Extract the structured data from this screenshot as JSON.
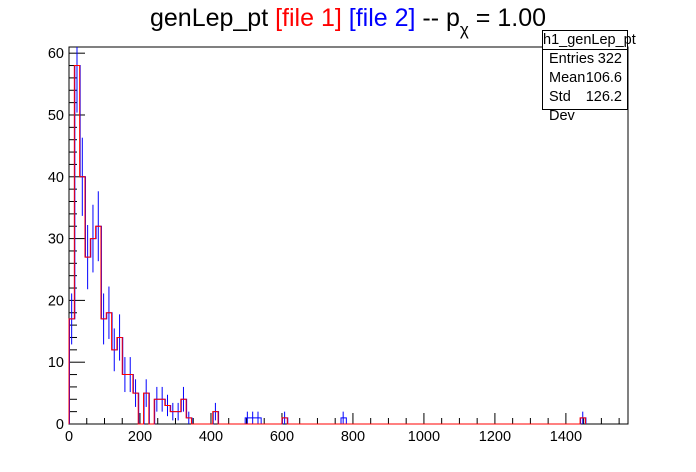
{
  "title": {
    "prefix": "genLep_pt ",
    "file1": "[file 1]",
    "file2": "[file 2]",
    "dash": " -- p",
    "sub": "χ",
    "tail": " = 1.00"
  },
  "stats": {
    "name": "h1_genLep_pt",
    "rows": [
      {
        "label": "Entries",
        "value": "322"
      },
      {
        "label": "Mean",
        "value": "106.6"
      },
      {
        "label": "Std Dev",
        "value": "126.2"
      }
    ]
  },
  "colors": {
    "file1": "#ff0000",
    "file2": "#0000ff",
    "axis": "#000000"
  },
  "chart_data": {
    "type": "histogram",
    "title": "genLep_pt [file 1] [file 2] -- pχ = 1.00",
    "xlim": [
      0,
      1575
    ],
    "ylim": [
      0,
      61
    ],
    "bin_width": 15,
    "x_ticks": [
      0,
      200,
      400,
      600,
      800,
      1000,
      1200,
      1400
    ],
    "y_ticks": [
      0,
      10,
      20,
      30,
      40,
      50,
      60
    ],
    "grid": false,
    "series": [
      {
        "name": "file 1",
        "color": "#ff0000",
        "values": [
          17,
          58,
          40,
          27,
          30,
          32,
          17,
          18,
          12,
          14,
          8,
          8,
          5,
          0,
          5,
          0,
          4,
          4,
          3,
          2,
          2,
          4,
          1,
          0,
          0,
          0,
          0,
          2,
          0,
          0,
          0,
          0,
          0,
          0,
          0,
          0,
          0,
          0,
          0,
          0,
          1,
          0,
          0,
          0,
          0,
          0,
          0,
          0,
          0,
          0,
          0,
          0,
          0,
          0,
          0,
          0,
          0,
          0,
          0,
          0,
          0,
          0,
          0,
          0,
          0,
          0,
          0,
          0,
          0,
          0,
          0,
          0,
          0,
          0,
          0,
          0,
          0,
          0,
          0,
          0,
          0,
          0,
          0,
          0,
          0,
          0,
          0,
          0,
          0,
          0,
          0,
          0,
          0,
          0,
          0,
          0,
          1
        ]
      },
      {
        "name": "file 2",
        "color": "#0000ff",
        "values": [
          17,
          58,
          40,
          27,
          30,
          32,
          17,
          18,
          12,
          14,
          8,
          8,
          5,
          0,
          5,
          0,
          4,
          4,
          3,
          2,
          2,
          4,
          1,
          0,
          0,
          0,
          0,
          2,
          0,
          0,
          0,
          0,
          0,
          1,
          1,
          1,
          0,
          0,
          0,
          0,
          1,
          0,
          0,
          0,
          0,
          0,
          0,
          0,
          0,
          0,
          0,
          1,
          0,
          0,
          0,
          0,
          0,
          0,
          0,
          0,
          0,
          0,
          0,
          0,
          0,
          0,
          0,
          0,
          0,
          0,
          0,
          0,
          0,
          0,
          0,
          0,
          0,
          0,
          0,
          0,
          0,
          0,
          0,
          0,
          0,
          0,
          0,
          0,
          0,
          0,
          0,
          0,
          0,
          0,
          0,
          0,
          1
        ]
      }
    ]
  }
}
